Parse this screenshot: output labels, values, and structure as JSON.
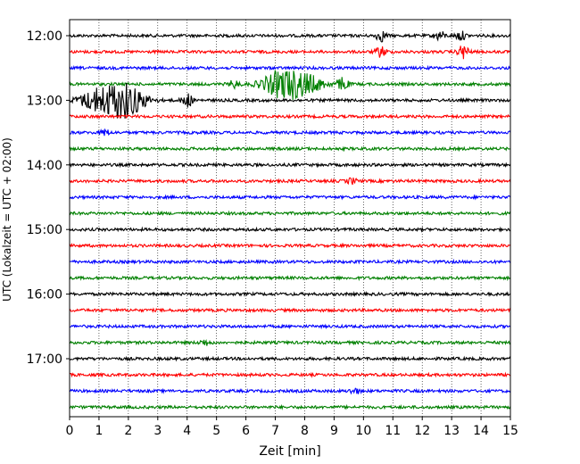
{
  "chart_data": {
    "type": "line",
    "subtype": "helicorder",
    "xlabel": "Zeit  [min]",
    "ylabel": "UTC (Lokalzeit = UTC + 02:00)",
    "xlim": [
      0,
      15
    ],
    "x_ticks": [
      "0",
      "1",
      "2",
      "3",
      "4",
      "5",
      "6",
      "7",
      "8",
      "9",
      "10",
      "11",
      "12",
      "13",
      "14",
      "15"
    ],
    "y_tick_labels": [
      "12:00",
      "13:00",
      "14:00",
      "15:00",
      "16:00",
      "17:00"
    ],
    "row_minutes": 15,
    "rows_per_hour": 4,
    "row_colors": [
      "#000000",
      "#ff0000",
      "#0000ff",
      "#008000"
    ],
    "grid_x": true,
    "traces": [
      {
        "start": "12:00",
        "events": [
          {
            "t": 10.6,
            "amp": 6
          },
          {
            "t": 12.6,
            "amp": 5
          },
          {
            "t": 13.3,
            "amp": 5
          }
        ]
      },
      {
        "start": "12:15",
        "events": [
          {
            "t": 10.6,
            "amp": 6
          },
          {
            "t": 13.4,
            "amp": 8
          }
        ]
      },
      {
        "start": "12:30",
        "events": []
      },
      {
        "start": "12:45",
        "events": [
          {
            "t": 7.2,
            "amp": 14
          },
          {
            "t": 8.0,
            "amp": 10
          },
          {
            "t": 9.3,
            "amp": 8
          },
          {
            "t": 5.6,
            "amp": 4
          }
        ]
      },
      {
        "start": "13:00",
        "events": [
          {
            "t": 1.0,
            "amp": 12
          },
          {
            "t": 1.9,
            "amp": 18
          },
          {
            "t": 4.0,
            "amp": 8
          }
        ]
      },
      {
        "start": "13:15",
        "events": []
      },
      {
        "start": "13:30",
        "events": [
          {
            "t": 1.2,
            "amp": 3
          }
        ]
      },
      {
        "start": "13:45",
        "events": []
      },
      {
        "start": "14:00",
        "events": []
      },
      {
        "start": "14:15",
        "events": [
          {
            "t": 9.6,
            "amp": 3
          }
        ]
      },
      {
        "start": "14:30",
        "events": []
      },
      {
        "start": "14:45",
        "events": []
      },
      {
        "start": "15:00",
        "events": []
      },
      {
        "start": "15:15",
        "events": []
      },
      {
        "start": "15:30",
        "events": []
      },
      {
        "start": "15:45",
        "events": []
      },
      {
        "start": "16:00",
        "events": []
      },
      {
        "start": "16:15",
        "events": []
      },
      {
        "start": "16:30",
        "events": []
      },
      {
        "start": "16:45",
        "events": [
          {
            "t": 4.6,
            "amp": 3
          }
        ]
      },
      {
        "start": "17:00",
        "events": []
      },
      {
        "start": "17:15",
        "events": []
      },
      {
        "start": "17:30",
        "events": [
          {
            "t": 9.7,
            "amp": 3
          }
        ]
      },
      {
        "start": "17:45",
        "events": []
      }
    ]
  }
}
